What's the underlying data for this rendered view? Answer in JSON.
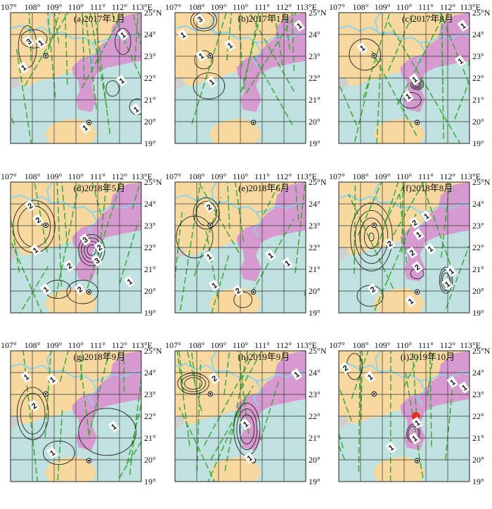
{
  "figure": {
    "lon_ticks": [
      "107°",
      "108°",
      "109°",
      "110°",
      "111°",
      "112°",
      "113°E"
    ],
    "lat_ticks": [
      "25°N",
      "24°",
      "23°",
      "22°",
      "21°",
      "20°",
      "19°"
    ],
    "colors": {
      "land": "#f7d9a0",
      "guangdong": "#d79ad0",
      "sea": "#bfe1df",
      "river": "#8fd3ec",
      "vietnam": "#cfcfcf",
      "track": "#3aaa35",
      "contour": "#222222",
      "grid": "#333333",
      "marker": "#e8302a"
    },
    "panels": [
      {
        "id": "a",
        "title": "(a)2017年1月",
        "labels": [
          "1",
          "3",
          "1",
          "1",
          "1",
          "1",
          "1"
        ]
      },
      {
        "id": "b",
        "title": "(b)2017年1月",
        "labels": [
          "3",
          "1",
          "1",
          "1",
          "1",
          "1"
        ]
      },
      {
        "id": "c",
        "title": "(c)2017年8月",
        "labels": [
          "1",
          "1",
          "1",
          "1",
          "1"
        ]
      },
      {
        "id": "d",
        "title": "(d)2018年5月",
        "labels": [
          "2",
          "2",
          "1",
          "2",
          "3",
          "2",
          "3",
          "1",
          "1",
          "2"
        ]
      },
      {
        "id": "e",
        "title": "(e)2018年6月",
        "labels": [
          "2",
          "1",
          "1",
          "1",
          "1",
          "2"
        ]
      },
      {
        "id": "f",
        "title": "(f)2018年8月",
        "labels": [
          "1",
          "2",
          "1",
          "2",
          "2",
          "1",
          "2",
          "1",
          "1",
          "2",
          "1"
        ]
      },
      {
        "id": "g",
        "title": "(g)2018年9月",
        "labels": [
          "1",
          "1",
          "2",
          "1",
          "1"
        ]
      },
      {
        "id": "h",
        "title": "(h)2019年9月",
        "labels": [
          "2",
          "1",
          "1",
          "1"
        ]
      },
      {
        "id": "i",
        "title": "(i)2019年10月",
        "labels": [
          "2",
          "1",
          "1",
          "1",
          "1",
          "1",
          "1"
        ]
      }
    ]
  }
}
